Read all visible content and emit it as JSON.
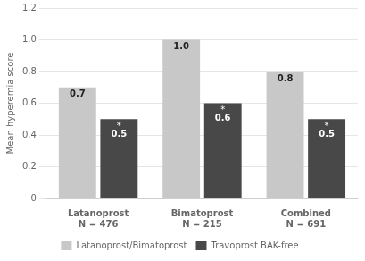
{
  "chart_data": {
    "type": "bar",
    "categories": [
      "Latanoprost\nN = 476",
      "Bimatoprost\nN = 215",
      "Combined\nN = 691"
    ],
    "series": [
      {
        "name": "Latanoprost/Bimatoprost",
        "color": "#c8c8c8",
        "values": [
          0.7,
          1.0,
          0.8
        ],
        "value_labels": [
          "0.7",
          "1.0",
          "0.8"
        ]
      },
      {
        "name": "Travoprost BAK-free",
        "color": "#484848",
        "values": [
          0.5,
          0.6,
          0.5
        ]
      }
    ],
    "ylabel": "Mean hyperemia score",
    "ylim": [
      0,
      1.2
    ],
    "yticks": [
      0,
      0.2,
      0.4,
      0.6,
      0.8,
      {
        "value": 1.0,
        "label": "1.0"
      },
      1.2
    ],
    "grid": true,
    "legend": "bottom",
    "data_labels": true,
    "annotations": [
      {
        "text": "*",
        "series": "Travoprost BAK-free"
      }
    ]
  }
}
